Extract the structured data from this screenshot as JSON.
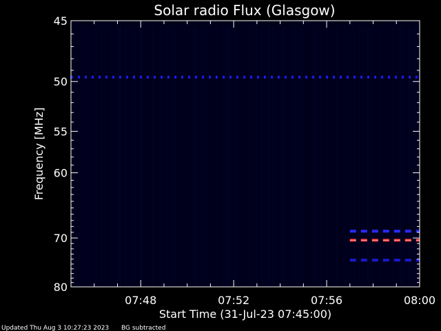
{
  "chart_data": {
    "type": "heatmap",
    "title": "Solar radio Flux (Glasgow)",
    "xlabel": "Start Time (31-Jul-23 07:45:00)",
    "ylabel": "Frequency [MHz]",
    "x_range": [
      "07:45",
      "08:00"
    ],
    "y_range_mhz": [
      45,
      80
    ],
    "y_scale": "reciprocal (top 45 MHz, bottom 80 MHz)",
    "x_ticks": [
      "07:48",
      "07:52",
      "07:56",
      "08:00"
    ],
    "y_ticks": [
      45,
      50,
      55,
      60,
      70,
      80
    ],
    "background_color": "#00001a",
    "features": [
      {
        "kind": "interference-band",
        "freq_mhz": 49.6,
        "from": "07:45",
        "to": "08:00",
        "color": "#1a1aff"
      },
      {
        "kind": "interference-band",
        "freq_mhz": 68.8,
        "from": "07:57",
        "to": "08:00",
        "color": "#2a2aff"
      },
      {
        "kind": "interference-band",
        "freq_mhz": 70.4,
        "from": "07:57",
        "to": "08:00",
        "color": "#ff3333"
      },
      {
        "kind": "interference-band",
        "freq_mhz": 74.2,
        "from": "07:57",
        "to": "08:00",
        "color": "#1a1acc"
      }
    ]
  },
  "footer": {
    "updated": "Updated Thu Aug  3 10:27:23 2023",
    "note": "BG subtracted"
  }
}
